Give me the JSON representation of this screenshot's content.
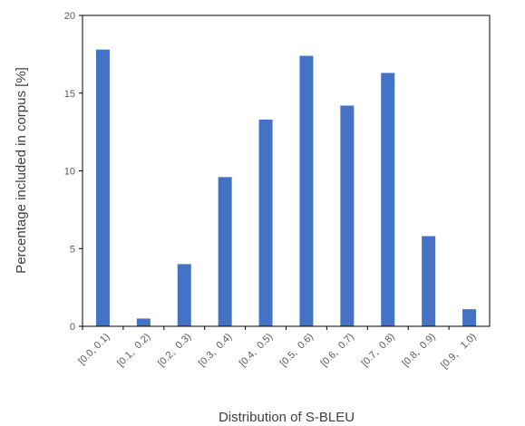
{
  "chart_data": {
    "type": "bar",
    "categories": [
      "[0.0, 0.1)",
      "[0.1,  0.2)",
      "[0.2,  0.3)",
      "[0.3,  0.4)",
      "[0.4,  0.5)",
      "[0.5,  0.6)",
      "[0.6,  0.7)",
      "[0.7,  0.8)",
      "[0.8,  0.9)",
      "[0.9,   1.0)"
    ],
    "values": [
      17.8,
      0.5,
      4.0,
      9.6,
      13.3,
      17.4,
      14.2,
      16.3,
      5.8,
      1.1
    ],
    "xlabel": "Distribution of S-BLEU",
    "ylabel": "Percentage included in corpus [%]",
    "ylim": [
      0,
      20
    ],
    "yticks": [
      0,
      5,
      10,
      15,
      20
    ],
    "grid": false,
    "bar_color": "#4472C4",
    "axis_color": "#000000"
  }
}
